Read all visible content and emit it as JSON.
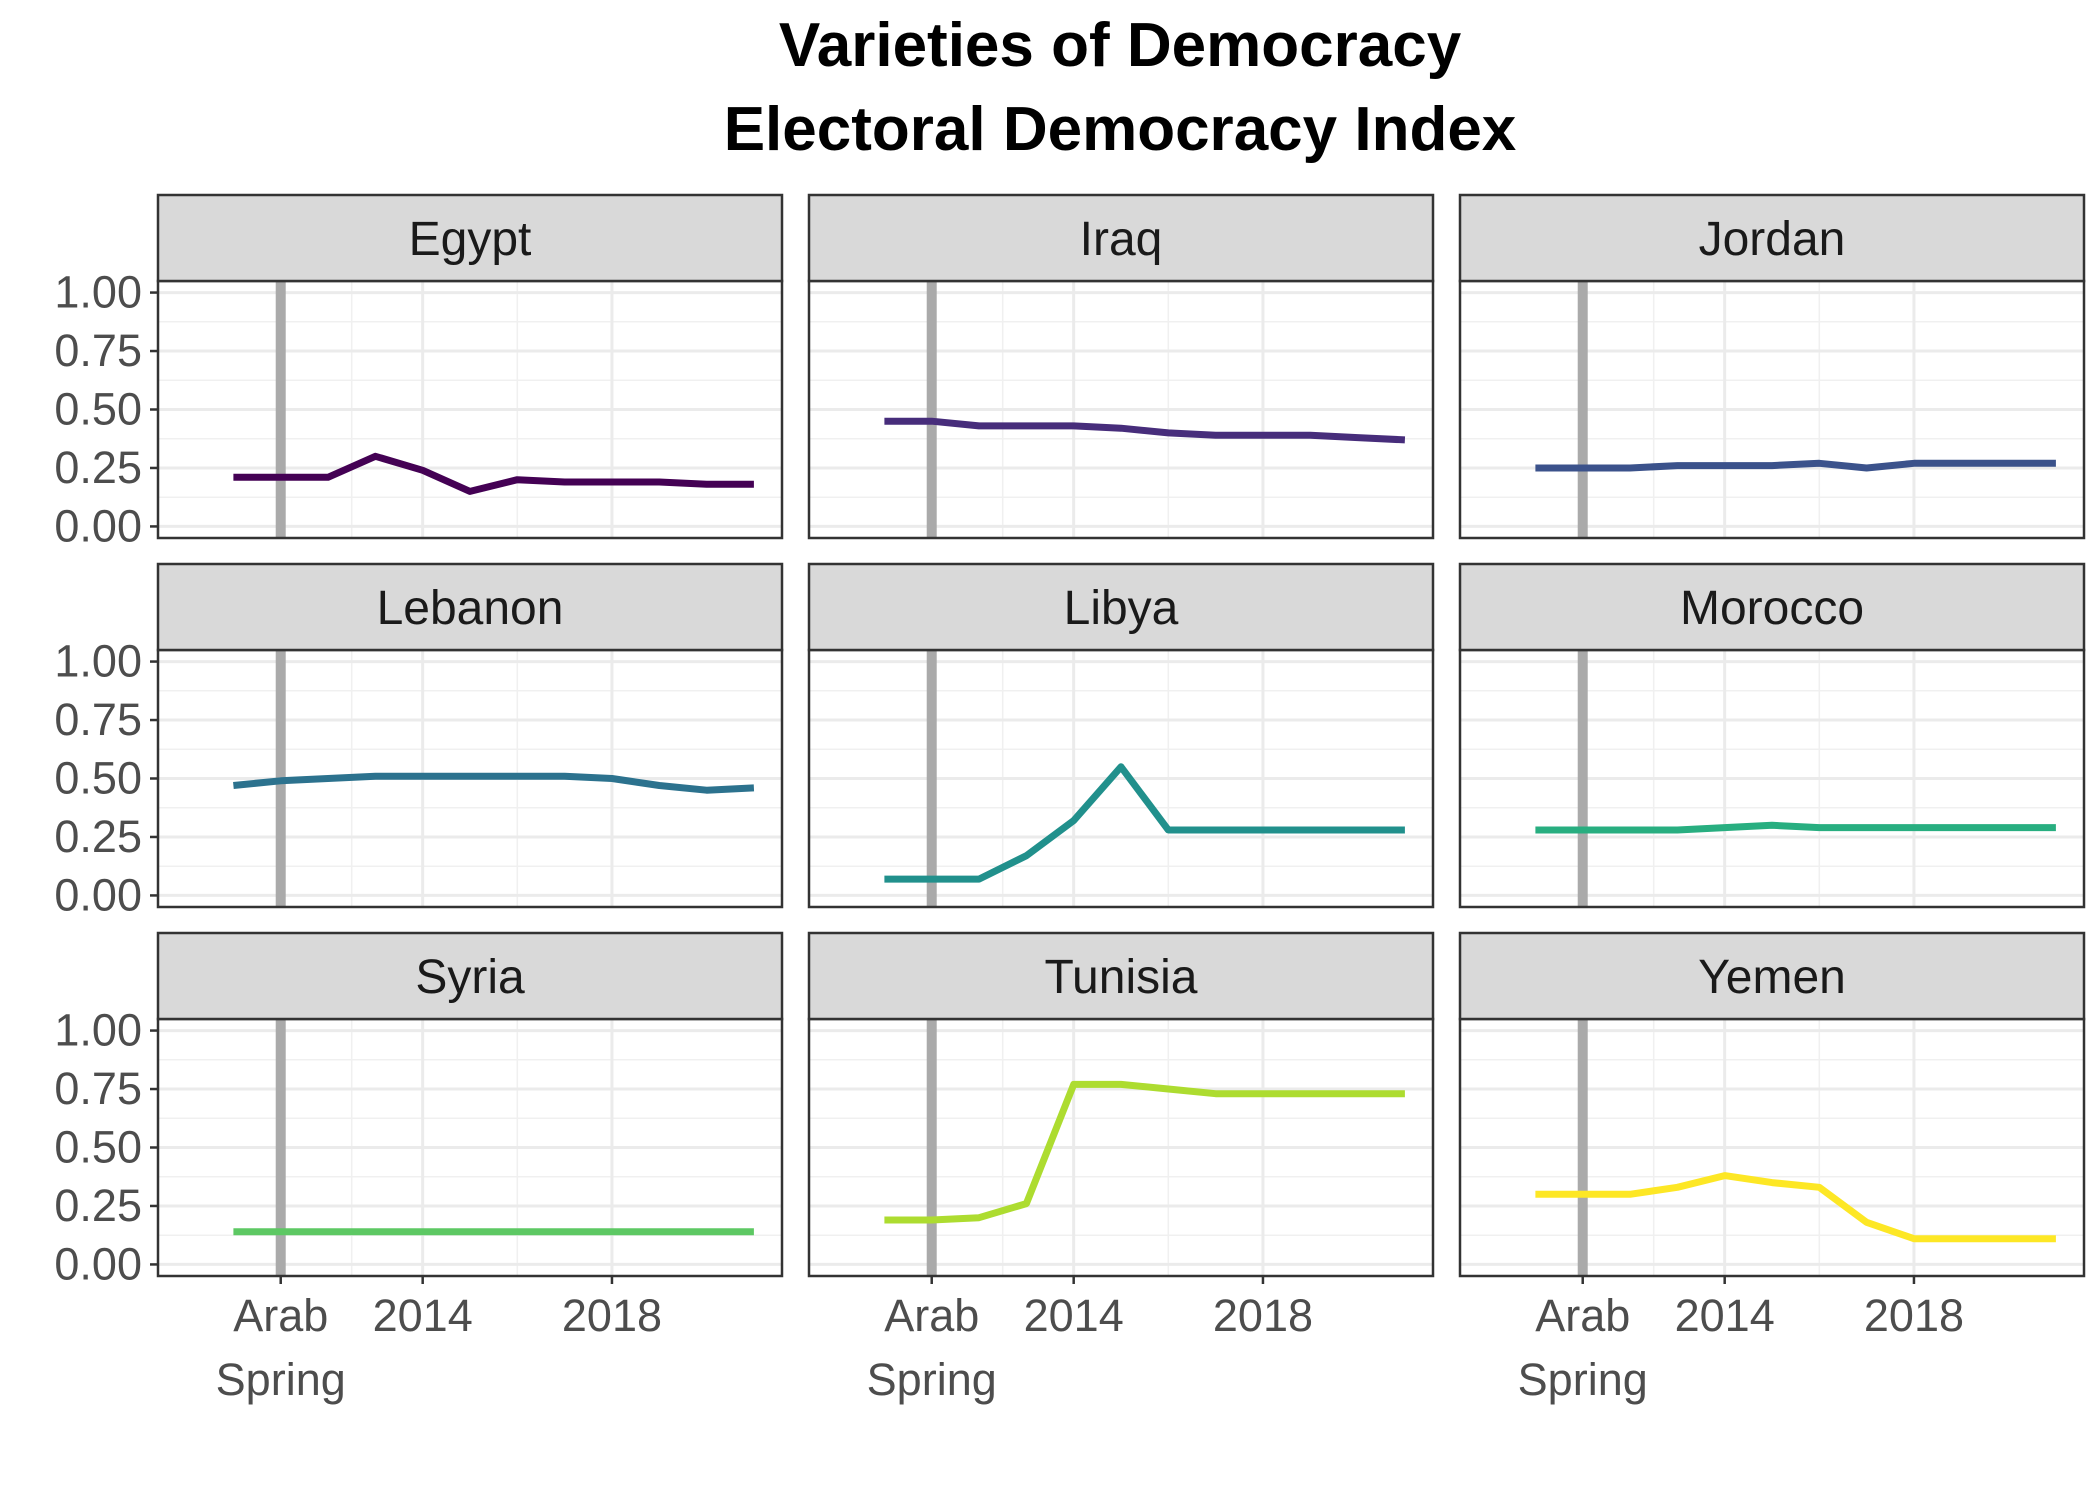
{
  "title_line1": "Varieties of Democracy",
  "title_line2": "Electoral Democracy Index",
  "chart_data": {
    "type": "line",
    "facet": "country",
    "x_range": [
      2009,
      2021
    ],
    "y_range": [
      0,
      1
    ],
    "y_ticks": [
      "0.00",
      "0.25",
      "0.50",
      "0.75",
      "1.00"
    ],
    "y_tick_values": [
      0,
      0.25,
      0.5,
      0.75,
      1
    ],
    "x_ticks": [
      {
        "value": 2011,
        "lines": [
          "Arab",
          "Spring"
        ]
      },
      {
        "value": 2014,
        "lines": [
          "2014"
        ]
      },
      {
        "value": 2018,
        "lines": [
          "2018"
        ]
      }
    ],
    "grid": true,
    "event_line": {
      "x": 2011,
      "color": "#aaaaaa"
    },
    "x": [
      2010,
      2011,
      2012,
      2013,
      2014,
      2015,
      2016,
      2017,
      2018,
      2019,
      2020,
      2021
    ],
    "series": [
      {
        "name": "Egypt",
        "color": "#440154",
        "values": [
          0.21,
          0.21,
          0.21,
          0.3,
          0.24,
          0.15,
          0.2,
          0.19,
          0.19,
          0.19,
          0.18,
          0.18
        ]
      },
      {
        "name": "Iraq",
        "color": "#472D7B",
        "values": [
          0.45,
          0.45,
          0.43,
          0.43,
          0.43,
          0.42,
          0.4,
          0.39,
          0.39,
          0.39,
          0.38,
          0.37
        ]
      },
      {
        "name": "Jordan",
        "color": "#3B528B",
        "values": [
          0.25,
          0.25,
          0.25,
          0.26,
          0.26,
          0.26,
          0.27,
          0.25,
          0.27,
          0.27,
          0.27,
          0.27
        ]
      },
      {
        "name": "Lebanon",
        "color": "#2C728E",
        "values": [
          0.47,
          0.49,
          0.5,
          0.51,
          0.51,
          0.51,
          0.51,
          0.51,
          0.5,
          0.47,
          0.45,
          0.46
        ]
      },
      {
        "name": "Libya",
        "color": "#21908C",
        "values": [
          0.07,
          0.07,
          0.07,
          0.17,
          0.32,
          0.55,
          0.28,
          0.28,
          0.28,
          0.28,
          0.28,
          0.28
        ]
      },
      {
        "name": "Morocco",
        "color": "#28AE80",
        "values": [
          0.28,
          0.28,
          0.28,
          0.28,
          0.29,
          0.3,
          0.29,
          0.29,
          0.29,
          0.29,
          0.29,
          0.29
        ]
      },
      {
        "name": "Syria",
        "color": "#5DC863",
        "values": [
          0.14,
          0.14,
          0.14,
          0.14,
          0.14,
          0.14,
          0.14,
          0.14,
          0.14,
          0.14,
          0.14,
          0.14
        ]
      },
      {
        "name": "Tunisia",
        "color": "#ADDC30",
        "values": [
          0.19,
          0.19,
          0.2,
          0.26,
          0.77,
          0.77,
          0.75,
          0.73,
          0.73,
          0.73,
          0.73,
          0.73
        ]
      },
      {
        "name": "Yemen",
        "color": "#FDE725",
        "values": [
          0.3,
          0.3,
          0.3,
          0.33,
          0.38,
          0.35,
          0.33,
          0.18,
          0.11,
          0.11,
          0.11,
          0.11
        ]
      }
    ]
  }
}
